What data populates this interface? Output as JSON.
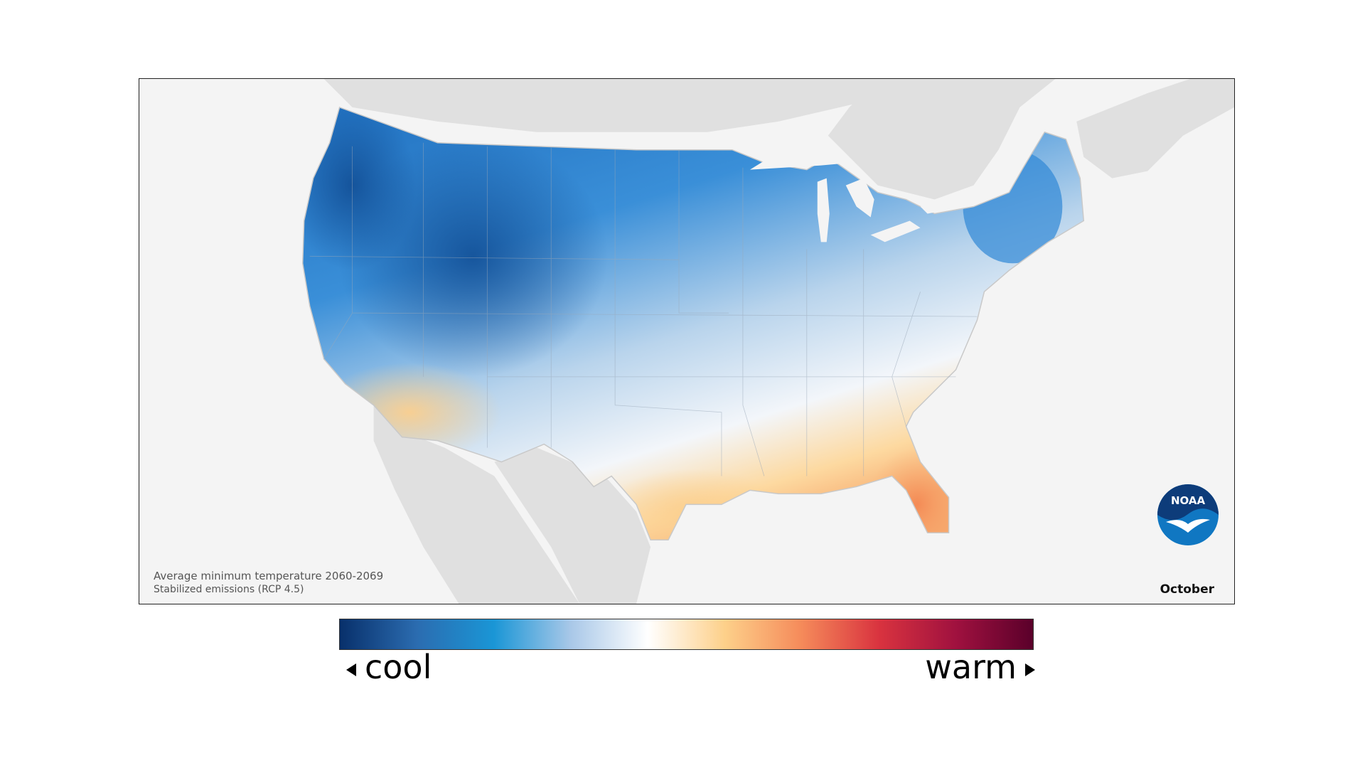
{
  "map": {
    "caption_line1": "Average minimum temperature 2060-2069",
    "caption_line2": "Stabilized emissions (RCP 4.5)",
    "month": "October",
    "logo_text": "NOAA",
    "land_color": "#e0e0e0",
    "water_color": "#f4f4f4"
  },
  "legend": {
    "low_label": "cool",
    "high_label": "warm",
    "gradient_colors": [
      "#08306b",
      "#2b6cb0",
      "#1a96d6",
      "#a9c8e8",
      "#ffffff",
      "#fdd08a",
      "#f58a5a",
      "#d9333f",
      "#a0113f",
      "#5a002a"
    ]
  }
}
